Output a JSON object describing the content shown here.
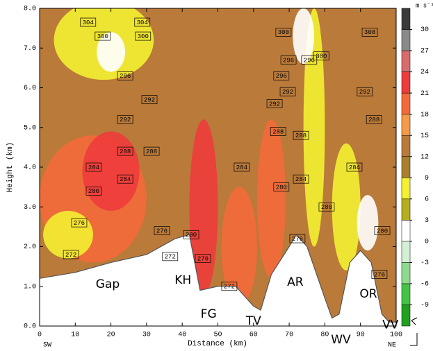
{
  "chart_data": {
    "type": "contour",
    "xlabel": "Distance (km)",
    "ylabel": "Height (km)",
    "xlim": [
      0,
      100
    ],
    "ylim": [
      0,
      8
    ],
    "xticks": [
      0,
      10,
      20,
      30,
      40,
      50,
      60,
      70,
      80,
      90,
      100
    ],
    "yticks": [
      {
        "value": 0,
        "label": "0.0"
      },
      {
        "value": 1,
        "label": "1.0"
      },
      {
        "value": 2,
        "label": "2.0"
      },
      {
        "value": 3,
        "label": "3.0"
      },
      {
        "value": 4,
        "label": "4.0"
      },
      {
        "value": 5,
        "label": "5.0"
      },
      {
        "value": 6,
        "label": "6.0"
      },
      {
        "value": 7,
        "label": "7.0"
      },
      {
        "value": 8,
        "label": "8.0"
      }
    ],
    "x_end_labels": [
      "SW",
      "NE"
    ],
    "colorbar": {
      "title": "m s⁻¹",
      "ticks": [
        -9,
        -6,
        -3,
        0,
        3,
        6,
        9,
        12,
        15,
        18,
        21,
        24,
        27,
        30
      ],
      "colors": [
        "#1fa01f",
        "#44c444",
        "#8edb8e",
        "#d4f0d4",
        "#ffffff",
        "#b6ae1c",
        "#f4f032",
        "#a8802e",
        "#b97a3a",
        "#f59a48",
        "#f46a3a",
        "#ee3c3c",
        "#d86c6c",
        "#8a8a8a",
        "#3a3a3a"
      ]
    },
    "background_speed": 13,
    "speed_regions": [
      {
        "x": 18,
        "y": 7.2,
        "rx": 14,
        "ry": 1.0,
        "value": 7
      },
      {
        "x": 20,
        "y": 6.9,
        "rx": 4,
        "ry": 0.5,
        "value": 2
      },
      {
        "x": 15,
        "y": 3.2,
        "rx": 15,
        "ry": 1.6,
        "value": 19
      },
      {
        "x": 20,
        "y": 3.9,
        "rx": 8,
        "ry": 1.0,
        "value": 22
      },
      {
        "x": 8,
        "y": 2.3,
        "rx": 7,
        "ry": 0.6,
        "value": 7
      },
      {
        "x": 46,
        "y": 3.0,
        "rx": 4,
        "ry": 2.2,
        "value": 22
      },
      {
        "x": 56,
        "y": 2.0,
        "rx": 5,
        "ry": 1.5,
        "value": 20
      },
      {
        "x": 65,
        "y": 3.2,
        "rx": 4,
        "ry": 2.0,
        "value": 19
      },
      {
        "x": 77,
        "y": 5.0,
        "rx": 3,
        "ry": 3.0,
        "value": 7
      },
      {
        "x": 86,
        "y": 3.0,
        "rx": 4,
        "ry": 1.6,
        "value": 7
      },
      {
        "x": 92,
        "y": 2.6,
        "rx": 3,
        "ry": 0.7,
        "value": 2
      },
      {
        "x": 74,
        "y": 7.3,
        "rx": 3,
        "ry": 0.7,
        "value": 2
      }
    ],
    "terrain": {
      "x": [
        0,
        10,
        20,
        30,
        38,
        42,
        45,
        50,
        55,
        60,
        62,
        65,
        70,
        72,
        75,
        80,
        82,
        84,
        87,
        90,
        93,
        96,
        98,
        100
      ],
      "y": [
        1.2,
        1.35,
        1.6,
        1.8,
        2.2,
        2.3,
        0.9,
        1.0,
        1.0,
        0.5,
        0.4,
        1.3,
        2.0,
        2.3,
        2.0,
        0.7,
        0.2,
        0.3,
        1.6,
        1.9,
        1.6,
        0.3,
        0.1,
        0.1
      ]
    },
    "contour_labels": [
      {
        "value": 304,
        "x": 13.6,
        "y": 7.65
      },
      {
        "value": 300,
        "x": 17.7,
        "y": 7.3
      },
      {
        "value": 300,
        "x": 29,
        "y": 7.3
      },
      {
        "value": 304,
        "x": 28.8,
        "y": 7.65
      },
      {
        "value": 296,
        "x": 24,
        "y": 6.3
      },
      {
        "value": 292,
        "x": 30.8,
        "y": 5.7
      },
      {
        "value": 292,
        "x": 24,
        "y": 5.2
      },
      {
        "value": 288,
        "x": 24,
        "y": 4.4
      },
      {
        "value": 288,
        "x": 31.4,
        "y": 4.4
      },
      {
        "value": 284,
        "x": 15.2,
        "y": 4.0
      },
      {
        "value": 284,
        "x": 24,
        "y": 3.7
      },
      {
        "value": 280,
        "x": 15.2,
        "y": 3.4
      },
      {
        "value": 276,
        "x": 11.1,
        "y": 2.6
      },
      {
        "value": 276,
        "x": 34.3,
        "y": 2.4
      },
      {
        "value": 272,
        "x": 8.8,
        "y": 1.8
      },
      {
        "value": 272,
        "x": 36.6,
        "y": 1.75
      },
      {
        "value": 280,
        "x": 42.5,
        "y": 2.3
      },
      {
        "value": 276,
        "x": 45.8,
        "y": 1.7
      },
      {
        "value": 272,
        "x": 53.2,
        "y": 1.0
      },
      {
        "value": 284,
        "x": 56.7,
        "y": 4.0
      },
      {
        "value": 292,
        "x": 65.9,
        "y": 5.6
      },
      {
        "value": 288,
        "x": 66.9,
        "y": 4.9
      },
      {
        "value": 280,
        "x": 67.8,
        "y": 3.5
      },
      {
        "value": 276,
        "x": 72.3,
        "y": 2.2
      },
      {
        "value": 300,
        "x": 68.4,
        "y": 7.4
      },
      {
        "value": 296,
        "x": 69.8,
        "y": 6.7
      },
      {
        "value": 296,
        "x": 67.8,
        "y": 6.3
      },
      {
        "value": 292,
        "x": 69.6,
        "y": 5.9
      },
      {
        "value": 288,
        "x": 73.3,
        "y": 4.8
      },
      {
        "value": 284,
        "x": 73.3,
        "y": 3.7
      },
      {
        "value": 280,
        "x": 80.5,
        "y": 3.0
      },
      {
        "value": 300,
        "x": 79,
        "y": 6.8
      },
      {
        "value": 296,
        "x": 75.6,
        "y": 6.7
      },
      {
        "value": 308,
        "x": 92.6,
        "y": 7.4
      },
      {
        "value": 292,
        "x": 91.2,
        "y": 5.9
      },
      {
        "value": 288,
        "x": 93.8,
        "y": 5.2
      },
      {
        "value": 284,
        "x": 88.3,
        "y": 4.0
      },
      {
        "value": 280,
        "x": 96.1,
        "y": 2.4
      },
      {
        "value": 276,
        "x": 95.3,
        "y": 1.3
      }
    ],
    "annotations": [
      {
        "text": "Gap",
        "x": 19.1,
        "y": 1.05
      },
      {
        "text": "KH",
        "x": 40.2,
        "y": 1.15
      },
      {
        "text": "FG",
        "x": 47.4,
        "y": 0.3
      },
      {
        "text": "TV",
        "x": 60,
        "y": 0.12
      },
      {
        "text": "AR",
        "x": 71.7,
        "y": 1.1
      },
      {
        "text": "WV",
        "x": 84.5,
        "y": -0.35
      },
      {
        "text": "OR",
        "x": 92.2,
        "y": 0.8
      },
      {
        "text": "VV",
        "x": 98.4,
        "y": 0.03
      }
    ]
  }
}
